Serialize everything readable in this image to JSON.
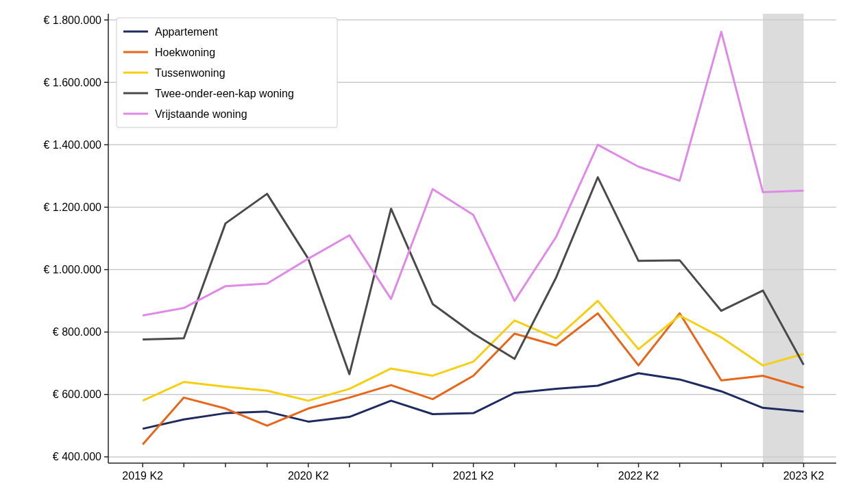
{
  "chart_data": {
    "type": "line",
    "x": [
      "2019-04-01",
      "2019-07-01",
      "2019-10-01",
      "2020-01-01",
      "2020-04-01",
      "2020-07-01",
      "2020-10-01",
      "2021-01-01",
      "2021-04-01",
      "2021-07-01",
      "2021-10-01",
      "2022-01-01",
      "2022-04-01",
      "2022-07-01",
      "2022-10-01",
      "2023-01-01",
      "2023-04-01"
    ],
    "xlim": [
      "2019-01-15",
      "2023-06-12"
    ],
    "xticks": [
      {
        "value": "2019-04-01",
        "label": "2019 K2"
      },
      {
        "value": "2019-07-01",
        "label": null
      },
      {
        "value": "2019-10-01",
        "label": null
      },
      {
        "value": "2020-01-01",
        "label": null
      },
      {
        "value": "2020-04-01",
        "label": "2020 K2"
      },
      {
        "value": "2020-07-01",
        "label": null
      },
      {
        "value": "2020-10-01",
        "label": null
      },
      {
        "value": "2021-01-01",
        "label": null
      },
      {
        "value": "2021-04-01",
        "label": "2021 K2"
      },
      {
        "value": "2021-07-01",
        "label": null
      },
      {
        "value": "2021-10-01",
        "label": null
      },
      {
        "value": "2022-01-01",
        "label": null
      },
      {
        "value": "2022-04-01",
        "label": "2022 K2"
      },
      {
        "value": "2022-07-01",
        "label": null
      },
      {
        "value": "2022-10-01",
        "label": null
      },
      {
        "value": "2023-01-01",
        "label": null
      },
      {
        "value": "2023-04-01",
        "label": "2023 K2"
      }
    ],
    "bands": [
      {
        "axis": "x",
        "from": "2023-01-01",
        "to": "2023-04-01",
        "color": "#dcdcdc"
      }
    ],
    "ylim": [
      380000,
      1820000
    ],
    "yticks": [
      {
        "value": 400000,
        "label": "€ 400.000"
      },
      {
        "value": 600000,
        "label": "€ 600.000"
      },
      {
        "value": 800000,
        "label": "€ 800.000"
      },
      {
        "value": 1000000,
        "label": "€ 1.000.000"
      },
      {
        "value": 1200000,
        "label": "€ 1.200.000"
      },
      {
        "value": 1400000,
        "label": "€ 1.400.000"
      },
      {
        "value": 1600000,
        "label": "€ 1.600.000"
      },
      {
        "value": 1800000,
        "label": "€ 1.800.000"
      }
    ],
    "grid": "y",
    "legend": "top left",
    "series": [
      {
        "name": "Appartement",
        "color": "#1f2a5e",
        "values": [
          490000,
          520000,
          540000,
          545000,
          513000,
          528000,
          580000,
          537000,
          540000,
          605000,
          618000,
          628000,
          668000,
          648000,
          610000,
          557000,
          545000
        ]
      },
      {
        "name": "Hoekwoning",
        "color": "#e8661a",
        "values": [
          440000,
          590000,
          555000,
          500000,
          555000,
          590000,
          630000,
          585000,
          660000,
          795000,
          757000,
          860000,
          693000,
          860000,
          645000,
          660000,
          622000
        ]
      },
      {
        "name": "Tussenwoning",
        "color": "#f5cf10",
        "values": [
          580000,
          640000,
          625000,
          612000,
          580000,
          618000,
          683000,
          660000,
          705000,
          837000,
          780000,
          900000,
          745000,
          853000,
          783000,
          693000,
          730000
        ]
      },
      {
        "name": "Twee-onder-een-kap woning",
        "color": "#4a4a4a",
        "values": [
          776000,
          780000,
          1148000,
          1243000,
          1035000,
          665000,
          1195000,
          890000,
          795000,
          714000,
          975000,
          1296000,
          1028000,
          1030000,
          868000,
          933000,
          695000
        ]
      },
      {
        "name": "Vrijstaande woning",
        "color": "#e08ae8",
        "values": [
          853000,
          877000,
          947000,
          955000,
          1035000,
          1110000,
          906000,
          1258000,
          1175000,
          900000,
          1105000,
          1400000,
          1330000,
          1285000,
          1762000,
          1248000,
          1253000
        ]
      }
    ]
  }
}
